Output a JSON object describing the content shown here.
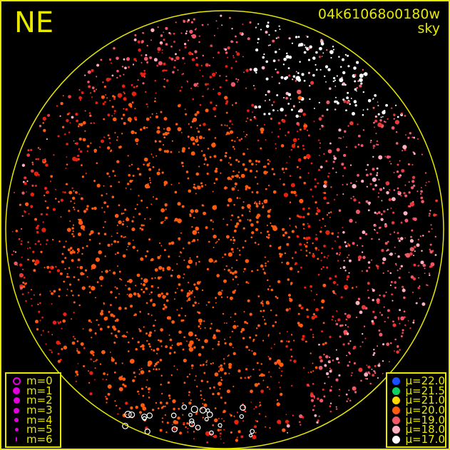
{
  "direction_label": "NE",
  "title": "04k61068o0180w",
  "subtitle": "sky",
  "colors": {
    "frame": "#e8e800",
    "background": "#000000",
    "magnitude_symbol": "#e000e0"
  },
  "magnitude_legend": [
    {
      "label": "m=0",
      "symbol": "open-circle"
    },
    {
      "label": "m=1"
    },
    {
      "label": "m=2"
    },
    {
      "label": "m=3"
    },
    {
      "label": "m=4"
    },
    {
      "label": "m=5"
    },
    {
      "label": "m=6"
    }
  ],
  "brightness_legend": [
    {
      "label": "μ=22.0",
      "color": "#1850ff"
    },
    {
      "label": "μ=21.5",
      "color": "#10d060"
    },
    {
      "label": "μ=21.0",
      "color": "#ffd800"
    },
    {
      "label": "μ=20.0",
      "color": "#ff5a10"
    },
    {
      "label": "μ=19.0",
      "color": "#f05868"
    },
    {
      "label": "μ=18.0",
      "color": "#ffb0c0"
    },
    {
      "label": "μ=17.0",
      "color": "#ffffff"
    }
  ]
}
